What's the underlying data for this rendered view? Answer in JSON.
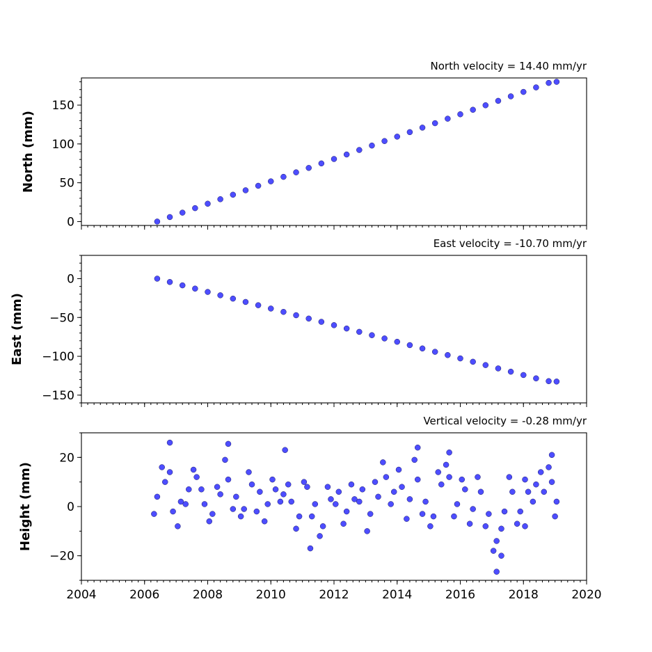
{
  "chart_data": [
    {
      "type": "scatter",
      "title": "North velocity = 14.40 mm/yr",
      "ylabel": "North (mm)",
      "xlim": [
        2004,
        2020
      ],
      "ylim": [
        -5,
        185
      ],
      "yticks": [
        0,
        50,
        100,
        150
      ],
      "xticks": [
        2004,
        2006,
        2008,
        2010,
        2012,
        2014,
        2016,
        2018,
        2020
      ],
      "show_xtick_labels": false,
      "colors": {
        "marker": "#4d4dff",
        "edge": "#1a1a66"
      },
      "series": [
        {
          "x": [
            2006.4,
            2006.8,
            2007.2,
            2007.6,
            2008.0,
            2008.4,
            2008.8,
            2009.2,
            2009.6,
            2010.0,
            2010.4,
            2010.8,
            2011.2,
            2011.6,
            2012.0,
            2012.4,
            2012.8,
            2013.2,
            2013.6,
            2014.0,
            2014.4,
            2014.8,
            2015.2,
            2015.6,
            2016.0,
            2016.4,
            2016.8,
            2017.2,
            2017.6,
            2018.0,
            2018.4,
            2018.8,
            2019.05
          ],
          "y": [
            0.0,
            5.8,
            11.5,
            17.3,
            23.0,
            28.8,
            34.6,
            40.3,
            46.1,
            51.8,
            57.6,
            63.4,
            69.1,
            74.9,
            80.6,
            86.4,
            92.2,
            97.9,
            103.7,
            109.4,
            115.2,
            121.0,
            126.7,
            132.5,
            138.2,
            144.0,
            149.8,
            155.5,
            161.3,
            167.0,
            172.8,
            178.6,
            180.0
          ]
        }
      ]
    },
    {
      "type": "scatter",
      "title": "East velocity = -10.70 mm/yr",
      "ylabel": "East (mm)",
      "xlim": [
        2004,
        2020
      ],
      "ylim": [
        -160,
        30
      ],
      "yticks": [
        0,
        -50,
        -100,
        -150
      ],
      "xticks": [
        2004,
        2006,
        2008,
        2010,
        2012,
        2014,
        2016,
        2018,
        2020
      ],
      "show_xtick_labels": false,
      "colors": {
        "marker": "#4d4dff",
        "edge": "#1a1a66"
      },
      "series": [
        {
          "x": [
            2006.4,
            2006.8,
            2007.2,
            2007.6,
            2008.0,
            2008.4,
            2008.8,
            2009.2,
            2009.6,
            2010.0,
            2010.4,
            2010.8,
            2011.2,
            2011.6,
            2012.0,
            2012.4,
            2012.8,
            2013.2,
            2013.6,
            2014.0,
            2014.4,
            2014.8,
            2015.2,
            2015.6,
            2016.0,
            2016.4,
            2016.8,
            2017.2,
            2017.6,
            2018.0,
            2018.4,
            2018.8,
            2019.05
          ],
          "y": [
            0.0,
            -4.3,
            -8.6,
            -12.8,
            -17.1,
            -21.4,
            -25.7,
            -30.0,
            -34.2,
            -38.5,
            -42.8,
            -47.1,
            -51.4,
            -55.6,
            -59.9,
            -64.2,
            -68.5,
            -72.8,
            -77.0,
            -81.3,
            -85.6,
            -89.9,
            -94.2,
            -98.4,
            -102.7,
            -107.0,
            -111.3,
            -115.6,
            -119.8,
            -124.1,
            -128.4,
            -132.0,
            -132.5
          ]
        }
      ]
    },
    {
      "type": "scatter",
      "title": "Vertical velocity = -0.28 mm/yr",
      "ylabel": "Height (mm)",
      "xlim": [
        2004,
        2020
      ],
      "ylim": [
        -30,
        30
      ],
      "yticks": [
        20,
        0,
        -20
      ],
      "xticks": [
        2004,
        2006,
        2008,
        2010,
        2012,
        2014,
        2016,
        2018,
        2020
      ],
      "xtick_labels": [
        "2004",
        "2006",
        "2008",
        "2010",
        "2012",
        "2014",
        "2016",
        "2018",
        "2020"
      ],
      "show_xtick_labels": true,
      "colors": {
        "marker": "#4d4dff",
        "edge": "#1a1a66"
      },
      "series": [
        {
          "x": [
            2006.4,
            2006.65,
            2006.9,
            2007.15,
            2007.4,
            2007.65,
            2007.9,
            2008.15,
            2008.4,
            2008.65,
            2008.9,
            2009.15,
            2009.4,
            2009.65,
            2009.9,
            2010.15,
            2010.4,
            2010.65,
            2010.9,
            2011.15,
            2011.4,
            2011.65,
            2011.9,
            2012.15,
            2012.4,
            2012.65,
            2012.9,
            2013.15,
            2013.4,
            2013.65,
            2013.9,
            2014.15,
            2014.4,
            2014.65,
            2014.9,
            2015.15,
            2015.4,
            2015.65,
            2015.9,
            2016.15,
            2016.4,
            2016.65,
            2016.9,
            2017.15,
            2017.4,
            2017.65,
            2017.9,
            2018.15,
            2018.4,
            2018.65,
            2018.9,
            2019.05
          ],
          "y": [
            4,
            10,
            -2,
            2,
            7,
            12,
            1,
            -3,
            5,
            11,
            4,
            -1,
            9,
            6,
            1,
            7,
            5,
            2,
            -4,
            8,
            1,
            -8,
            3,
            6,
            -2,
            3,
            7,
            -3,
            4,
            12,
            6,
            8,
            3,
            11,
            2,
            -4,
            9,
            12,
            1,
            7,
            -1,
            6,
            -3,
            -14,
            -2,
            6,
            -2,
            6,
            9,
            6,
            10,
            2
          ]
        },
        {
          "x": [
            2006.3,
            2006.55,
            2006.8,
            2007.05,
            2007.3,
            2007.55,
            2007.8,
            2008.05,
            2008.3,
            2008.55,
            2008.8,
            2009.05,
            2009.3,
            2009.55,
            2009.8,
            2010.05,
            2010.3,
            2010.55,
            2010.8,
            2011.05,
            2011.3,
            2011.55,
            2011.8,
            2012.05,
            2012.3,
            2012.55,
            2012.8,
            2013.05,
            2013.3,
            2013.55,
            2013.8,
            2014.05,
            2014.3,
            2014.55,
            2014.8,
            2015.05,
            2015.3,
            2015.55,
            2015.8,
            2016.05,
            2016.3,
            2016.55,
            2016.8,
            2017.05,
            2017.3,
            2017.55,
            2017.8,
            2018.05,
            2018.3,
            2018.55,
            2018.8,
            2019.0
          ],
          "y": [
            -3,
            16,
            14,
            -8,
            1,
            15,
            7,
            -6,
            8,
            19,
            -1,
            -4,
            14,
            -2,
            -6,
            11,
            2,
            9,
            -9,
            10,
            -4,
            -12,
            8,
            1,
            -7,
            9,
            2,
            -10,
            10,
            18,
            1,
            15,
            -5,
            19,
            -3,
            -8,
            14,
            17,
            -4,
            11,
            -7,
            12,
            -8,
            -18,
            -9,
            12,
            -7,
            11,
            2,
            14,
            16,
            -4
          ]
        },
        {
          "x": [
            2006.8,
            2008.65,
            2010.45,
            2011.25,
            2014.65,
            2015.65,
            2017.15,
            2017.3,
            2018.05,
            2018.9
          ],
          "y": [
            26,
            25.5,
            23,
            -17,
            24,
            22,
            -26.5,
            -20,
            -8,
            21
          ]
        }
      ]
    }
  ]
}
